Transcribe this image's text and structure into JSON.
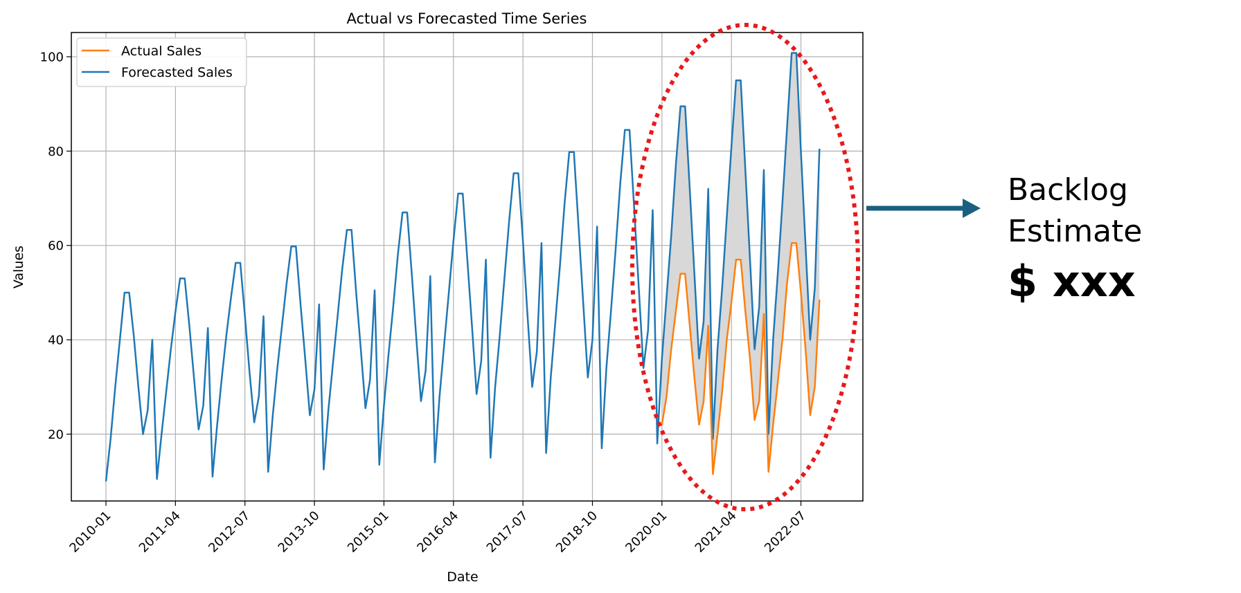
{
  "chart_data": {
    "type": "line",
    "title": "Actual vs Forecasted Time Series",
    "xlabel": "Date",
    "ylabel": "Values",
    "ylim": [
      5,
      105
    ],
    "yticks": [
      20,
      40,
      60,
      80,
      100
    ],
    "xticks": [
      "2010-01",
      "2011-04",
      "2012-07",
      "2013-10",
      "2015-01",
      "2016-04",
      "2017-07",
      "2018-10",
      "2020-01",
      "2021-04",
      "2022-07"
    ],
    "grid": true,
    "legend_position": "top-left",
    "x_start": "2010-01",
    "x_end": "2022-12",
    "shaded_region": {
      "from": "2020-01",
      "to": "2022-12",
      "fill": "#d8d8d8",
      "description": "gap between forecasted and actual sales"
    },
    "series": [
      {
        "name": "Actual Sales",
        "color": "#ff7f0e",
        "start": "2020-01",
        "values": [
          22,
          28,
          38,
          46,
          54,
          54,
          43,
          32,
          22,
          27,
          43,
          11.5,
          20,
          29,
          40,
          48,
          57,
          57,
          46,
          36,
          23,
          27,
          45.5,
          12,
          22,
          31,
          40,
          52,
          60.5,
          60.5,
          50,
          38,
          24,
          30,
          48.5
        ]
      },
      {
        "name": "Forecasted Sales",
        "color": "#1f77b4",
        "start": "2010-01",
        "values": [
          10,
          19,
          30,
          40,
          50,
          50,
          41,
          30,
          20,
          25,
          40,
          10.5,
          20,
          29,
          38,
          46,
          53,
          53,
          43,
          32,
          21,
          26,
          42.5,
          11,
          22,
          32,
          41,
          49,
          56.3,
          56.3,
          45,
          33,
          22.5,
          28,
          45,
          12,
          24,
          34,
          43,
          52,
          59.8,
          59.8,
          47.5,
          36,
          24,
          29.5,
          47.5,
          12.5,
          25,
          35,
          45,
          55,
          63.3,
          63.3,
          50,
          38,
          25.5,
          31.5,
          50.5,
          13.5,
          26,
          37,
          47,
          58,
          67,
          67,
          54,
          40,
          27,
          33.5,
          53.5,
          14,
          28,
          39,
          50,
          61,
          71,
          71,
          57,
          43,
          28.5,
          35.5,
          57,
          15,
          30,
          41,
          53,
          65,
          75.3,
          75.3,
          61,
          45,
          30,
          37.5,
          60.5,
          16,
          32,
          44,
          56,
          69,
          79.8,
          79.8,
          64,
          48,
          32,
          40,
          64,
          17,
          34,
          46,
          59,
          73,
          84.5,
          84.5,
          68,
          51,
          34,
          42,
          67.5,
          18,
          36,
          49,
          62,
          77,
          89.5,
          89.5,
          72,
          54,
          36,
          44,
          72,
          19,
          38,
          51,
          66,
          81,
          95,
          95,
          76,
          57,
          38,
          47,
          76,
          20,
          40,
          54,
          69,
          85,
          100.8,
          100.8,
          80,
          60,
          40,
          51,
          80.5
        ]
      }
    ]
  },
  "callout": {
    "line1": "Backlog",
    "line2": "Estimate",
    "amount": "$ xxx"
  },
  "colors": {
    "highlight_ellipse": "#e8191c",
    "arrow": "#1b5f80"
  }
}
